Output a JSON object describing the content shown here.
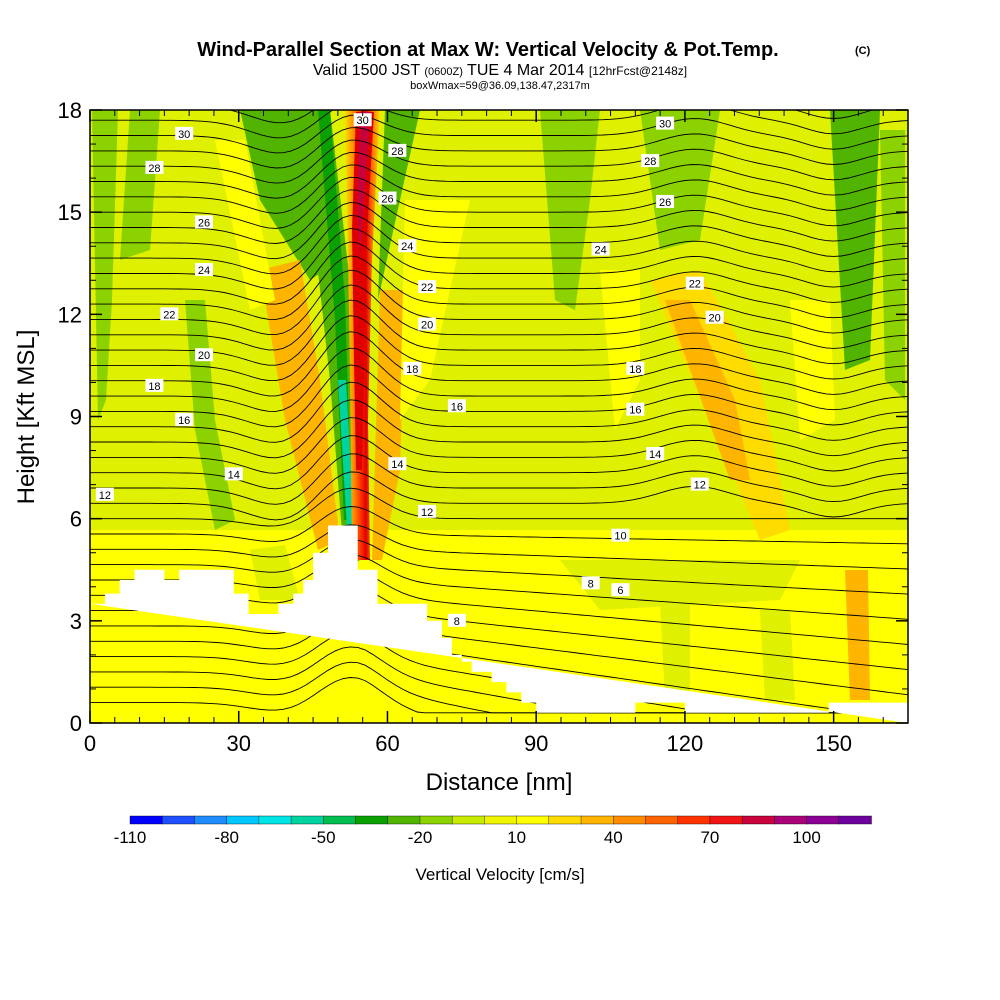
{
  "title": {
    "main": "Wind-Parallel Section at Max W: Vertical Velocity & Pot.Temp.",
    "copyright": "(C)",
    "valid_prefix": "Valid 1500 JST",
    "valid_utc": "(0600Z)",
    "valid_date": "TUE 4 Mar 2014",
    "forecast": "[12hrFcst@2148z]",
    "box_info": "boxWmax=59@36.09,138.47,2317m"
  },
  "chart_data": {
    "type": "heatmap",
    "xlabel": "Distance [nm]",
    "ylabel": "Height [Kft MSL]",
    "xlim": [
      0,
      165
    ],
    "ylim": [
      0,
      18
    ],
    "x_ticks": [
      0,
      30,
      60,
      90,
      120,
      150
    ],
    "y_ticks": [
      0,
      3,
      6,
      9,
      12,
      15,
      18
    ],
    "colorbar": {
      "label": "Vertical Velocity [cm/s]",
      "tick_labels": [
        "-110",
        "-80",
        "-50",
        "-20",
        "10",
        "40",
        "70",
        "100"
      ],
      "colors": [
        "#0000ff",
        "#1e50ff",
        "#1e8cff",
        "#00c8ff",
        "#00e6e6",
        "#00d2a0",
        "#00be50",
        "#0aa000",
        "#50b400",
        "#8cd200",
        "#c8eb00",
        "#f0f500",
        "#ffff00",
        "#ffdc00",
        "#ffb400",
        "#ff8c00",
        "#ff6400",
        "#ff3200",
        "#f01414",
        "#c8003c",
        "#aa0078",
        "#8c0096",
        "#6e00a0"
      ]
    },
    "theta_contours": [
      6,
      8,
      10,
      12,
      14,
      16,
      18,
      20,
      22,
      24,
      26,
      28,
      30
    ],
    "theta_labels": [
      {
        "text": "30",
        "x": 19,
        "y": 17.3
      },
      {
        "text": "28",
        "x": 13,
        "y": 16.3
      },
      {
        "text": "26",
        "x": 23,
        "y": 14.7
      },
      {
        "text": "24",
        "x": 23,
        "y": 13.3
      },
      {
        "text": "22",
        "x": 16,
        "y": 12.0
      },
      {
        "text": "20",
        "x": 23,
        "y": 10.8
      },
      {
        "text": "18",
        "x": 13,
        "y": 9.9
      },
      {
        "text": "16",
        "x": 19,
        "y": 8.9
      },
      {
        "text": "14",
        "x": 29,
        "y": 7.3
      },
      {
        "text": "12",
        "x": 3,
        "y": 6.7
      },
      {
        "text": "30",
        "x": 55,
        "y": 17.7
      },
      {
        "text": "28",
        "x": 62,
        "y": 16.8
      },
      {
        "text": "26",
        "x": 60,
        "y": 15.4
      },
      {
        "text": "24",
        "x": 64,
        "y": 14.0
      },
      {
        "text": "22",
        "x": 68,
        "y": 12.8
      },
      {
        "text": "20",
        "x": 68,
        "y": 11.7
      },
      {
        "text": "18",
        "x": 65,
        "y": 10.4
      },
      {
        "text": "16",
        "x": 74,
        "y": 9.3
      },
      {
        "text": "14",
        "x": 62,
        "y": 7.6
      },
      {
        "text": "12",
        "x": 68,
        "y": 6.2
      },
      {
        "text": "30",
        "x": 116,
        "y": 17.6
      },
      {
        "text": "28",
        "x": 113,
        "y": 16.5
      },
      {
        "text": "26",
        "x": 116,
        "y": 15.3
      },
      {
        "text": "24",
        "x": 103,
        "y": 13.9
      },
      {
        "text": "22",
        "x": 122,
        "y": 12.9
      },
      {
        "text": "20",
        "x": 126,
        "y": 11.9
      },
      {
        "text": "18",
        "x": 110,
        "y": 10.4
      },
      {
        "text": "16",
        "x": 110,
        "y": 9.2
      },
      {
        "text": "14",
        "x": 114,
        "y": 7.9
      },
      {
        "text": "12",
        "x": 123,
        "y": 7.0
      },
      {
        "text": "10",
        "x": 107,
        "y": 5.5
      },
      {
        "text": "8",
        "x": 101,
        "y": 4.1
      },
      {
        "text": "6",
        "x": 107,
        "y": 3.9
      },
      {
        "text": "8",
        "x": 74,
        "y": 3.0
      }
    ],
    "terrain": [
      [
        0,
        3.5
      ],
      [
        3,
        3.5
      ],
      [
        3,
        3.8
      ],
      [
        6,
        3.8
      ],
      [
        6,
        4.2
      ],
      [
        9,
        4.2
      ],
      [
        9,
        4.5
      ],
      [
        15,
        4.5
      ],
      [
        15,
        4.2
      ],
      [
        18,
        4.2
      ],
      [
        18,
        4.5
      ],
      [
        29,
        4.5
      ],
      [
        29,
        3.8
      ],
      [
        32,
        3.8
      ],
      [
        32,
        3.2
      ],
      [
        38,
        3.2
      ],
      [
        38,
        3.5
      ],
      [
        41,
        3.5
      ],
      [
        41,
        3.8
      ],
      [
        43,
        3.8
      ],
      [
        43,
        4.2
      ],
      [
        45,
        4.2
      ],
      [
        45,
        5.0
      ],
      [
        48,
        5.0
      ],
      [
        48,
        5.8
      ],
      [
        54,
        5.8
      ],
      [
        54,
        4.5
      ],
      [
        58,
        4.5
      ],
      [
        58,
        3.5
      ],
      [
        68,
        3.5
      ],
      [
        68,
        3.0
      ],
      [
        71,
        3.0
      ],
      [
        71,
        2.5
      ],
      [
        73,
        2.5
      ],
      [
        73,
        2.0
      ],
      [
        75,
        2.0
      ],
      [
        75,
        1.8
      ],
      [
        77,
        1.8
      ],
      [
        77,
        1.5
      ],
      [
        81,
        1.5
      ],
      [
        81,
        1.2
      ],
      [
        84,
        1.2
      ],
      [
        84,
        0.9
      ],
      [
        87,
        0.9
      ],
      [
        87,
        0.6
      ],
      [
        90,
        0.6
      ],
      [
        90,
        0.3
      ],
      [
        110,
        0.3
      ],
      [
        110,
        0.6
      ],
      [
        120,
        0.6
      ],
      [
        120,
        0.3
      ],
      [
        149,
        0.3
      ],
      [
        149,
        0.6
      ],
      [
        165,
        0.6
      ],
      [
        165,
        0
      ]
    ]
  }
}
